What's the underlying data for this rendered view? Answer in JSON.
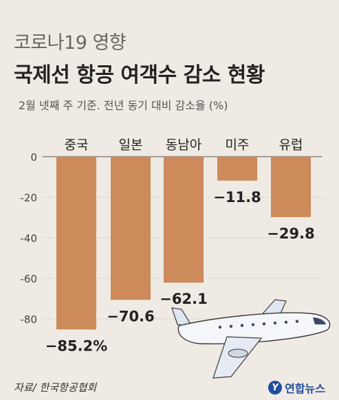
{
  "header": {
    "subtitle": "코로나19 영향",
    "title": "국제선 항공 여객수 감소 현황",
    "note": "2월 넷째 주 기준. 전년 동기 대비 감소율 (%)"
  },
  "footer": {
    "source": "자료/ 한국항공협회",
    "logo_text": "연합뉴스",
    "logo_mark": "Y"
  },
  "chart_data": {
    "type": "bar",
    "categories": [
      "중국",
      "일본",
      "동남아",
      "미주",
      "유럽"
    ],
    "values": [
      -85.2,
      -70.6,
      -62.1,
      -11.8,
      -29.8
    ],
    "value_labels": [
      "−85.2%",
      "−70.6",
      "−62.1",
      "−11.8",
      "−29.8"
    ],
    "title": "국제선 항공 여객수 감소 현황",
    "xlabel": "",
    "ylabel": "",
    "ylim": [
      -90,
      0
    ],
    "yticks": [
      0,
      -20,
      -40,
      -60,
      -80
    ],
    "ytick_labels": [
      "0",
      "-20",
      "-40",
      "-60",
      "-80"
    ],
    "grid": true,
    "bar_color": "#cd8a5a",
    "grid_color": "#bdb7ad"
  }
}
